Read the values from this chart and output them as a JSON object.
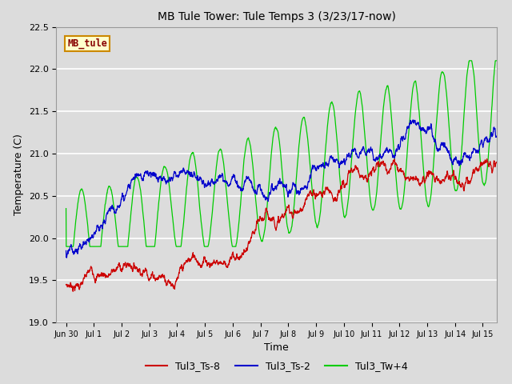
{
  "title": "MB Tule Tower: Tule Temps 3 (3/23/17-now)",
  "xlabel": "Time",
  "ylabel": "Temperature (C)",
  "ylim": [
    19.0,
    22.5
  ],
  "bg_color": "#dcdcdc",
  "grid_color": "white",
  "series": {
    "Tul3_Ts-8": {
      "color": "#cc0000"
    },
    "Tul3_Ts-2": {
      "color": "#0000cc"
    },
    "Tul3_Tw+4": {
      "color": "#00cc00"
    }
  },
  "legend_box": {
    "label": "MB_tule",
    "facecolor": "#ffffcc",
    "edgecolor": "#cc8800",
    "textcolor": "#880000"
  },
  "tick_labels": [
    "Jun 30",
    "Jul 1",
    "Jul 2",
    "Jul 3",
    "Jul 4",
    "Jul 5",
    "Jul 6",
    "Jul 7",
    "Jul 8",
    "Jul 9",
    "Jul 10",
    "Jul 11",
    "Jul 12",
    "Jul 13",
    "Jul 14",
    "Jul 15"
  ],
  "tick_positions": [
    0,
    1,
    2,
    3,
    4,
    5,
    6,
    7,
    8,
    9,
    10,
    11,
    12,
    13,
    14,
    15
  ],
  "yticks": [
    19.0,
    19.5,
    20.0,
    20.5,
    21.0,
    21.5,
    22.0,
    22.5
  ]
}
